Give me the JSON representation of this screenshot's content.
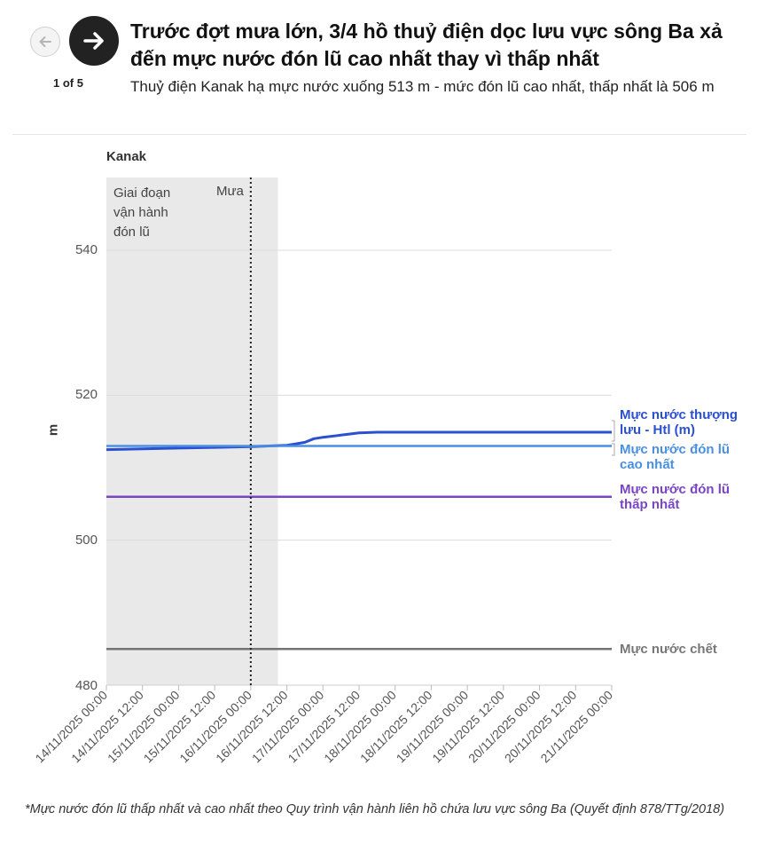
{
  "header": {
    "counter": "1 of 5",
    "title": "Trước đợt mưa lớn, 3/4 hồ thuỷ điện dọc lưu vực sông Ba xả đến mực nước đón lũ cao nhất thay vì thấp nhất",
    "subtitle": "Thuỷ điện Kanak hạ mực nước xuống 513 m - mức đón lũ cao nhất, thấp nhất là 506 m"
  },
  "navigation": {
    "prev_icon": "arrow-left-icon",
    "next_icon": "arrow-right-icon"
  },
  "chart_data": {
    "type": "line",
    "panel_title": "Kanak",
    "ylabel": "m",
    "xlabel": "",
    "ylim": [
      480,
      550
    ],
    "yticks": [
      540,
      520,
      500,
      480
    ],
    "x_categories": [
      "14/11/2025 00:00",
      "14/11/2025 12:00",
      "15/11/2025 00:00",
      "15/11/2025 12:00",
      "16/11/2025 00:00",
      "16/11/2025 12:00",
      "17/11/2025 00:00",
      "17/11/2025 12:00",
      "18/11/2025 00:00",
      "18/11/2025 12:00",
      "19/11/2025 00:00",
      "19/11/2025 12:00",
      "20/11/2025 00:00",
      "20/11/2025 12:00",
      "21/11/2025 00:00"
    ],
    "grid": true,
    "shaded_region": {
      "x_start": 0,
      "x_end": 4.75,
      "label": "Giai đoạn vận hành đón lũ"
    },
    "event_marker": {
      "x": 4,
      "label": "Mưa"
    },
    "series": [
      {
        "name": "Mực nước thượng lưu - Htl (m)",
        "color": "#2a50d0",
        "points": [
          [
            0,
            512.5
          ],
          [
            1,
            512.6
          ],
          [
            2,
            512.7
          ],
          [
            3,
            512.8
          ],
          [
            4,
            512.9
          ],
          [
            4.5,
            513.0
          ],
          [
            5,
            513.1
          ],
          [
            5.25,
            513.3
          ],
          [
            5.5,
            513.5
          ],
          [
            5.75,
            514.0
          ],
          [
            6,
            514.2
          ],
          [
            6.5,
            514.5
          ],
          [
            7,
            514.8
          ],
          [
            7.5,
            514.9
          ],
          [
            8,
            514.9
          ],
          [
            10,
            514.9
          ],
          [
            12,
            514.9
          ],
          [
            14,
            514.9
          ]
        ]
      },
      {
        "name": "Mực nước đón lũ cao nhất",
        "color": "#4a90e2",
        "points": [
          [
            0,
            513
          ],
          [
            14,
            513
          ]
        ]
      },
      {
        "name": "Mực nước đón lũ thấp nhất",
        "color": "#7a45c4",
        "points": [
          [
            0,
            506
          ],
          [
            14,
            506
          ]
        ]
      },
      {
        "name": "Mực nước chết",
        "color": "#757575",
        "points": [
          [
            0,
            485
          ],
          [
            14,
            485
          ]
        ]
      }
    ],
    "footnote": "*Mực nước đón lũ thấp nhất và cao nhất theo Quy trình vận hành liên hồ chứa lưu vực sông Ba (Quyết định 878/TTg/2018)"
  }
}
